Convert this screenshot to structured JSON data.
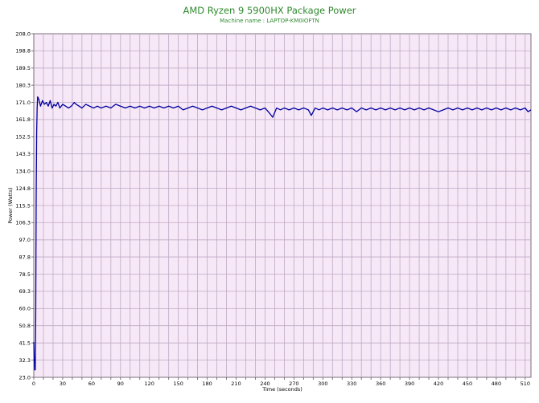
{
  "header": {
    "title": "AMD Ryzen 9 5900HX Package Power",
    "subtitle": "Machine name : LAPTOP-KM0IOFTN"
  },
  "chart_data": {
    "type": "line",
    "title": "AMD Ryzen 9 5900HX Package Power",
    "subtitle": "Machine name : LAPTOP-KM0IOFTN",
    "xlabel": "Time (seconds)",
    "ylabel": "Power (Watts)",
    "xlim": [
      0,
      516
    ],
    "ylim": [
      23.0,
      208.0
    ],
    "x_ticks": [
      0,
      30,
      60,
      90,
      120,
      150,
      180,
      210,
      240,
      270,
      300,
      330,
      360,
      390,
      420,
      450,
      480,
      510
    ],
    "y_ticks": [
      "23.0",
      "32.3",
      "41.5",
      "50.8",
      "60.0",
      "69.3",
      "78.5",
      "87.8",
      "97.0",
      "106.3",
      "115.5",
      "124.8",
      "134.0",
      "143.3",
      "152.5",
      "161.8",
      "171.0",
      "180.3",
      "189.5",
      "198.8",
      "208.0"
    ],
    "grid": true,
    "colors": {
      "line": "#0000a0",
      "plot_bg": "#f7e8f7",
      "grid": "#bfa9c4",
      "title": "#2f8a2f"
    },
    "series": [
      {
        "x": [
          0,
          0.5,
          1,
          1.5,
          2,
          2.5,
          3,
          3.5,
          4,
          5,
          7,
          9,
          11,
          13,
          15,
          17,
          19,
          21,
          23,
          25,
          27,
          30,
          33,
          36,
          39,
          42,
          44,
          47,
          50,
          54,
          58,
          62,
          66,
          70,
          75,
          80,
          85,
          90,
          95,
          100,
          105,
          110,
          115,
          120,
          125,
          130,
          135,
          140,
          145,
          150,
          155,
          160,
          165,
          170,
          175,
          180,
          185,
          190,
          195,
          200,
          205,
          210,
          215,
          220,
          225,
          230,
          235,
          240,
          245,
          248,
          252,
          256,
          260,
          265,
          270,
          275,
          280,
          285,
          288,
          292,
          296,
          300,
          305,
          310,
          315,
          320,
          325,
          330,
          335,
          340,
          345,
          350,
          355,
          360,
          365,
          370,
          375,
          380,
          385,
          390,
          395,
          400,
          405,
          410,
          415,
          420,
          425,
          430,
          435,
          440,
          445,
          450,
          455,
          460,
          465,
          470,
          475,
          480,
          485,
          490,
          495,
          500,
          505,
          510,
          513,
          516
        ],
        "y": [
          42,
          33,
          27,
          27,
          55,
          120,
          155,
          168,
          174,
          173,
          169,
          172,
          170,
          171,
          169,
          172,
          168,
          170,
          169,
          171,
          168,
          170,
          169,
          168,
          169,
          171,
          170,
          169,
          168,
          170,
          169,
          168,
          169,
          168,
          169,
          168,
          170,
          169,
          168,
          169,
          168,
          169,
          168,
          169,
          168,
          169,
          168,
          169,
          168,
          169,
          167,
          168,
          169,
          168,
          167,
          168,
          169,
          168,
          167,
          168,
          169,
          168,
          167,
          168,
          169,
          168,
          167,
          168,
          165,
          163,
          168,
          167,
          168,
          167,
          168,
          167,
          168,
          167,
          164,
          168,
          167,
          168,
          167,
          168,
          167,
          168,
          167,
          168,
          166,
          168,
          167,
          168,
          167,
          168,
          167,
          168,
          167,
          168,
          167,
          168,
          167,
          168,
          167,
          168,
          167,
          166,
          167,
          168,
          167,
          168,
          167,
          168,
          167,
          168,
          167,
          168,
          167,
          168,
          167,
          168,
          167,
          168,
          167,
          168,
          166,
          167
        ]
      }
    ]
  }
}
